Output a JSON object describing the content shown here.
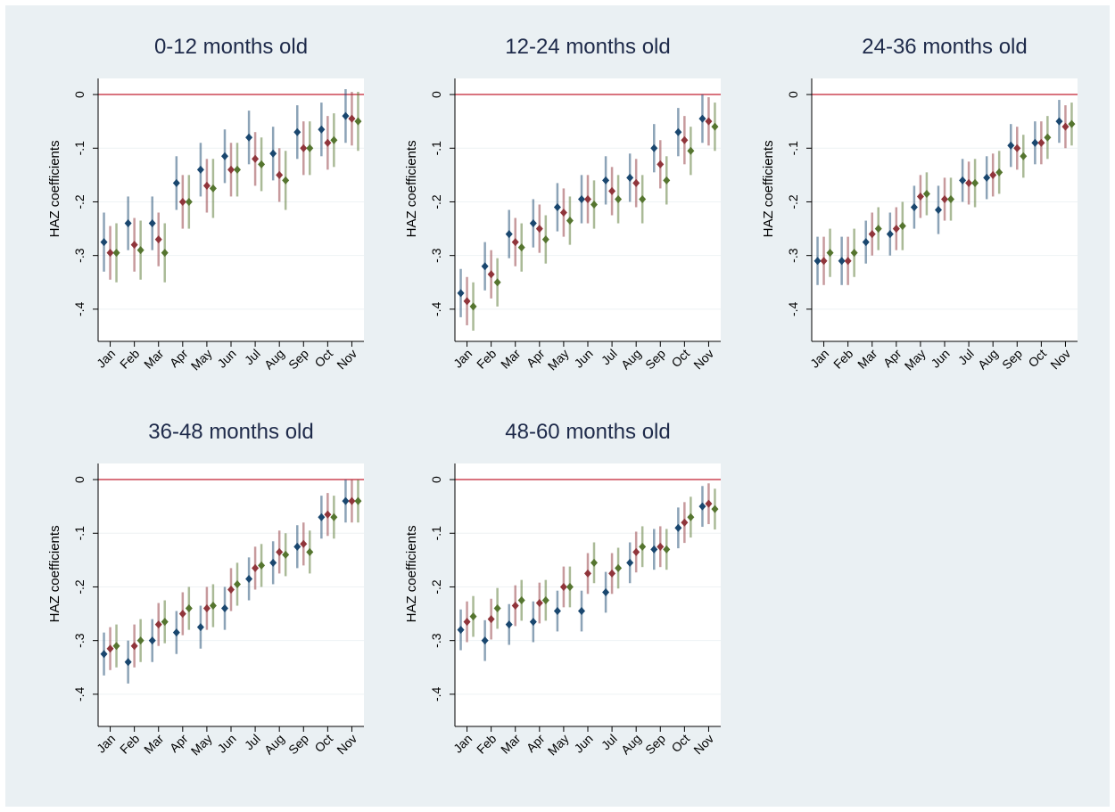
{
  "chart_data": [
    {
      "type": "errorbar",
      "title": "0-12 months old",
      "y_label": "HAZ coefficients",
      "categories": [
        "Jan",
        "Feb",
        "Mar",
        "Apr",
        "May",
        "Jun",
        "Jul",
        "Aug",
        "Sep",
        "Oct",
        "Nov"
      ],
      "series": [
        {
          "color": "#1a476f",
          "values": [
            -0.275,
            -0.24,
            -0.24,
            -0.165,
            -0.14,
            -0.115,
            -0.08,
            -0.11,
            -0.07,
            -0.065,
            -0.04
          ],
          "errors": [
            0.055,
            0.05,
            0.05,
            0.05,
            0.05,
            0.05,
            0.05,
            0.05,
            0.05,
            0.05,
            0.05
          ]
        },
        {
          "color": "#90353b",
          "values": [
            -0.295,
            -0.28,
            -0.27,
            -0.2,
            -0.17,
            -0.14,
            -0.12,
            -0.15,
            -0.1,
            -0.09,
            -0.045
          ],
          "errors": [
            0.05,
            0.05,
            0.05,
            0.05,
            0.05,
            0.05,
            0.05,
            0.05,
            0.05,
            0.05,
            0.05
          ]
        },
        {
          "color": "#55752f",
          "values": [
            -0.295,
            -0.29,
            -0.295,
            -0.2,
            -0.175,
            -0.14,
            -0.13,
            -0.16,
            -0.1,
            -0.085,
            -0.05
          ],
          "errors": [
            0.055,
            0.055,
            0.055,
            0.05,
            0.055,
            0.05,
            0.05,
            0.055,
            0.05,
            0.05,
            0.055
          ]
        }
      ],
      "ylim": [
        -0.46,
        0.03
      ],
      "yticks": [
        {
          "value": 0,
          "label": "0"
        },
        {
          "value": -0.1,
          "label": "-.1"
        },
        {
          "value": -0.2,
          "label": "-.2"
        },
        {
          "value": -0.3,
          "label": "-.3"
        },
        {
          "value": -0.4,
          "label": "-.4"
        }
      ],
      "grid": true,
      "reference_line": {
        "value": 0,
        "color": "#d9737e"
      }
    },
    {
      "type": "errorbar",
      "title": "12-24 months old",
      "y_label": "HAZ coefficients",
      "categories": [
        "Jan",
        "Feb",
        "Mar",
        "Apr",
        "May",
        "Jun",
        "Jul",
        "Aug",
        "Sep",
        "Oct",
        "Nov"
      ],
      "series": [
        {
          "color": "#1a476f",
          "values": [
            -0.37,
            -0.32,
            -0.26,
            -0.24,
            -0.21,
            -0.195,
            -0.16,
            -0.155,
            -0.1,
            -0.07,
            -0.045
          ],
          "errors": [
            0.045,
            0.045,
            0.045,
            0.045,
            0.045,
            0.045,
            0.045,
            0.045,
            0.045,
            0.045,
            0.045
          ]
        },
        {
          "color": "#90353b",
          "values": [
            -0.385,
            -0.335,
            -0.275,
            -0.25,
            -0.22,
            -0.195,
            -0.18,
            -0.165,
            -0.13,
            -0.085,
            -0.05
          ],
          "errors": [
            0.045,
            0.045,
            0.045,
            0.045,
            0.045,
            0.045,
            0.045,
            0.045,
            0.045,
            0.045,
            0.045
          ]
        },
        {
          "color": "#55752f",
          "values": [
            -0.395,
            -0.35,
            -0.285,
            -0.27,
            -0.235,
            -0.205,
            -0.195,
            -0.195,
            -0.16,
            -0.105,
            -0.06
          ],
          "errors": [
            0.045,
            0.045,
            0.045,
            0.045,
            0.045,
            0.045,
            0.045,
            0.045,
            0.045,
            0.045,
            0.045
          ]
        }
      ],
      "ylim": [
        -0.46,
        0.03
      ],
      "yticks": [
        {
          "value": 0,
          "label": "0"
        },
        {
          "value": -0.1,
          "label": "-.1"
        },
        {
          "value": -0.2,
          "label": "-.2"
        },
        {
          "value": -0.3,
          "label": "-.3"
        },
        {
          "value": -0.4,
          "label": "-.4"
        }
      ],
      "grid": true,
      "reference_line": {
        "value": 0,
        "color": "#d9737e"
      }
    },
    {
      "type": "errorbar",
      "title": "24-36 months old",
      "y_label": "HAZ coefficients",
      "categories": [
        "Jan",
        "Feb",
        "Mar",
        "Apr",
        "May",
        "Jun",
        "Jul",
        "Aug",
        "Sep",
        "Oct",
        "Nov"
      ],
      "series": [
        {
          "color": "#1a476f",
          "values": [
            -0.31,
            -0.31,
            -0.275,
            -0.26,
            -0.21,
            -0.215,
            -0.16,
            -0.155,
            -0.095,
            -0.09,
            -0.05
          ],
          "errors": [
            0.045,
            0.045,
            0.04,
            0.04,
            0.04,
            0.045,
            0.04,
            0.04,
            0.04,
            0.04,
            0.04
          ]
        },
        {
          "color": "#90353b",
          "values": [
            -0.31,
            -0.31,
            -0.26,
            -0.25,
            -0.19,
            -0.195,
            -0.165,
            -0.15,
            -0.1,
            -0.09,
            -0.06
          ],
          "errors": [
            0.045,
            0.045,
            0.04,
            0.04,
            0.04,
            0.04,
            0.04,
            0.04,
            0.04,
            0.04,
            0.04
          ]
        },
        {
          "color": "#55752f",
          "values": [
            -0.295,
            -0.295,
            -0.25,
            -0.245,
            -0.185,
            -0.195,
            -0.165,
            -0.145,
            -0.115,
            -0.08,
            -0.055
          ],
          "errors": [
            0.045,
            0.045,
            0.04,
            0.045,
            0.04,
            0.04,
            0.045,
            0.04,
            0.04,
            0.04,
            0.04
          ]
        }
      ],
      "ylim": [
        -0.46,
        0.03
      ],
      "yticks": [
        {
          "value": 0,
          "label": "0"
        },
        {
          "value": -0.1,
          "label": "-.1"
        },
        {
          "value": -0.2,
          "label": "-.2"
        },
        {
          "value": -0.3,
          "label": "-.3"
        },
        {
          "value": -0.4,
          "label": "-.4"
        }
      ],
      "grid": true,
      "reference_line": {
        "value": 0,
        "color": "#d9737e"
      }
    },
    {
      "type": "errorbar",
      "title": "36-48 months old",
      "y_label": "HAZ coefficients",
      "categories": [
        "Jan",
        "Feb",
        "Mar",
        "Apr",
        "May",
        "Jun",
        "Jul",
        "Aug",
        "Sep",
        "Oct",
        "Nov"
      ],
      "series": [
        {
          "color": "#1a476f",
          "values": [
            -0.325,
            -0.34,
            -0.3,
            -0.285,
            -0.275,
            -0.24,
            -0.185,
            -0.155,
            -0.125,
            -0.07,
            -0.04
          ],
          "errors": [
            0.04,
            0.04,
            0.04,
            0.04,
            0.04,
            0.04,
            0.04,
            0.04,
            0.04,
            0.04,
            0.04
          ]
        },
        {
          "color": "#90353b",
          "values": [
            -0.315,
            -0.31,
            -0.27,
            -0.25,
            -0.24,
            -0.205,
            -0.165,
            -0.135,
            -0.12,
            -0.065,
            -0.04
          ],
          "errors": [
            0.04,
            0.04,
            0.04,
            0.04,
            0.04,
            0.04,
            0.04,
            0.04,
            0.04,
            0.04,
            0.04
          ]
        },
        {
          "color": "#55752f",
          "values": [
            -0.31,
            -0.3,
            -0.265,
            -0.24,
            -0.235,
            -0.195,
            -0.16,
            -0.14,
            -0.135,
            -0.07,
            -0.04
          ],
          "errors": [
            0.04,
            0.04,
            0.04,
            0.04,
            0.04,
            0.04,
            0.04,
            0.04,
            0.04,
            0.04,
            0.04
          ]
        }
      ],
      "ylim": [
        -0.46,
        0.03
      ],
      "yticks": [
        {
          "value": 0,
          "label": "0"
        },
        {
          "value": -0.1,
          "label": "-.1"
        },
        {
          "value": -0.2,
          "label": "-.2"
        },
        {
          "value": -0.3,
          "label": "-.3"
        },
        {
          "value": -0.4,
          "label": "-.4"
        }
      ],
      "grid": true,
      "reference_line": {
        "value": 0,
        "color": "#d9737e"
      }
    },
    {
      "type": "errorbar",
      "title": "48-60 months old",
      "y_label": "HAZ coefficients",
      "categories": [
        "Jan",
        "Feb",
        "Mar",
        "Apr",
        "May",
        "Jun",
        "Jul",
        "Aug",
        "Sep",
        "Oct",
        "Nov"
      ],
      "series": [
        {
          "color": "#1a476f",
          "values": [
            -0.28,
            -0.3,
            -0.27,
            -0.265,
            -0.245,
            -0.245,
            -0.21,
            -0.155,
            -0.13,
            -0.09,
            -0.05
          ],
          "errors": [
            0.038,
            0.038,
            0.038,
            0.038,
            0.038,
            0.038,
            0.038,
            0.038,
            0.038,
            0.038,
            0.038
          ]
        },
        {
          "color": "#90353b",
          "values": [
            -0.265,
            -0.26,
            -0.235,
            -0.23,
            -0.2,
            -0.175,
            -0.175,
            -0.135,
            -0.125,
            -0.08,
            -0.045
          ],
          "errors": [
            0.038,
            0.038,
            0.038,
            0.038,
            0.038,
            0.038,
            0.038,
            0.038,
            0.038,
            0.038,
            0.038
          ]
        },
        {
          "color": "#55752f",
          "values": [
            -0.255,
            -0.24,
            -0.225,
            -0.225,
            -0.2,
            -0.155,
            -0.165,
            -0.125,
            -0.13,
            -0.07,
            -0.055
          ],
          "errors": [
            0.038,
            0.038,
            0.038,
            0.038,
            0.038,
            0.038,
            0.038,
            0.038,
            0.038,
            0.038,
            0.038
          ]
        }
      ],
      "ylim": [
        -0.46,
        0.03
      ],
      "yticks": [
        {
          "value": 0,
          "label": "0"
        },
        {
          "value": -0.1,
          "label": "-.1"
        },
        {
          "value": -0.2,
          "label": "-.2"
        },
        {
          "value": -0.3,
          "label": "-.3"
        },
        {
          "value": -0.4,
          "label": "-.4"
        }
      ],
      "grid": true,
      "reference_line": {
        "value": 0,
        "color": "#d9737e"
      }
    }
  ]
}
